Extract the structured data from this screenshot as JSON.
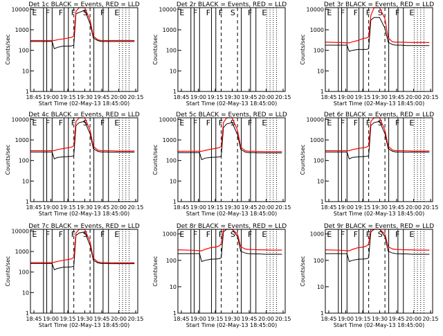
{
  "page": {
    "background": "#ffffff"
  },
  "legend_colors": {
    "events": "#000000",
    "lld": "#ff0000"
  },
  "chart_data": [
    {
      "type": "line",
      "title": "Det 1c BLACK = Events, RED = LLD",
      "xlabel": "Start Time (02-May-13 18:45:00)",
      "ylabel": "Counts/sec",
      "xlim": [
        0,
        99
      ],
      "ylim": [
        1,
        12000
      ],
      "yscale": "log",
      "x_ticks": [
        "18:45",
        "19:00",
        "19:15",
        "19:30",
        "19:45",
        "20:00",
        "20:15"
      ],
      "y_ticks": [
        "1",
        "10",
        "100",
        "1000",
        "10000"
      ],
      "flags": [
        "E",
        "F",
        "F",
        "F",
        "S",
        "F",
        "E"
      ],
      "series": [
        {
          "color": "#000000",
          "x": [
            0,
            15,
            20,
            22,
            25,
            30,
            35,
            38,
            40,
            42,
            45,
            50,
            55,
            58,
            62,
            65,
            70,
            75,
            80,
            85,
            90,
            96
          ],
          "y": [
            270,
            270,
            270,
            120,
            140,
            160,
            160,
            165,
            180,
            6000,
            7000,
            9000,
            2000,
            400,
            300,
            270,
            270,
            270,
            270,
            270,
            270,
            270
          ]
        },
        {
          "color": "#ff0000",
          "x": [
            0,
            15,
            20,
            22,
            25,
            30,
            35,
            38,
            40,
            42,
            45,
            50,
            55,
            58,
            62,
            65,
            70,
            75,
            80,
            85,
            90,
            96
          ],
          "y": [
            300,
            300,
            300,
            300,
            330,
            360,
            400,
            430,
            500,
            8000,
            12000,
            12000,
            3000,
            500,
            330,
            300,
            300,
            300,
            300,
            300,
            300,
            300
          ]
        }
      ]
    },
    {
      "type": "line",
      "title": "Det 2r BLACK = Events, RED = LLD",
      "xlabel": "Start Time (02-May-13 18:45:00)",
      "ylabel": "Counts/sec",
      "xlim": [
        0,
        99
      ],
      "ylim": [
        1,
        12000
      ],
      "yscale": "log",
      "x_ticks": [
        "18:45",
        "19:00",
        "19:15",
        "19:30",
        "19:45",
        "20:00",
        "20:15"
      ],
      "y_ticks": [
        "1",
        "10",
        "100",
        "1000",
        "10000"
      ],
      "flags": [
        "E",
        "F",
        "F",
        "F",
        "S",
        "F",
        "E"
      ],
      "series": []
    },
    {
      "type": "line",
      "title": "Det 3r BLACK = Events, RED = LLD",
      "xlabel": "Start Time (02-May-13 18:45:00)",
      "ylabel": "Counts/sec",
      "xlim": [
        0,
        99
      ],
      "ylim": [
        1,
        12000
      ],
      "yscale": "log",
      "x_ticks": [
        "18:45",
        "19:00",
        "19:15",
        "19:30",
        "19:45",
        "20:00",
        "20:15"
      ],
      "y_ticks": [
        "1",
        "10",
        "100",
        "1000",
        "10000"
      ],
      "flags": [
        "E",
        "F",
        "F",
        "F",
        "S",
        "F",
        "E"
      ],
      "series": [
        {
          "color": "#000000",
          "x": [
            0,
            15,
            20,
            22,
            25,
            30,
            35,
            38,
            40,
            42,
            45,
            50,
            55,
            58,
            62,
            65,
            70,
            75,
            80,
            85,
            90,
            96
          ],
          "y": [
            180,
            180,
            180,
            90,
            100,
            110,
            110,
            110,
            120,
            3000,
            4000,
            4000,
            1200,
            250,
            190,
            180,
            180,
            170,
            170,
            170,
            170,
            170
          ]
        },
        {
          "color": "#ff0000",
          "x": [
            0,
            15,
            20,
            22,
            25,
            30,
            35,
            38,
            40,
            42,
            45,
            50,
            55,
            58,
            62,
            65,
            70,
            75,
            80,
            85,
            90,
            96
          ],
          "y": [
            250,
            240,
            230,
            230,
            260,
            300,
            380,
            400,
            450,
            5000,
            12000,
            12000,
            3500,
            400,
            260,
            250,
            250,
            245,
            240,
            240,
            240,
            240
          ]
        }
      ]
    },
    {
      "type": "line",
      "title": "Det 4c BLACK = Events, RED = LLD",
      "xlabel": "Start Time (02-May-13 18:45:00)",
      "ylabel": "Counts/sec",
      "xlim": [
        0,
        99
      ],
      "ylim": [
        1,
        12000
      ],
      "yscale": "log",
      "x_ticks": [
        "18:45",
        "19:00",
        "19:15",
        "19:30",
        "19:45",
        "20:00",
        "20:15"
      ],
      "y_ticks": [
        "1",
        "10",
        "100",
        "1000",
        "10000"
      ],
      "flags": [
        "E",
        "F",
        "F",
        "F",
        "S",
        "F",
        "E"
      ],
      "series": [
        {
          "color": "#000000",
          "x": [
            0,
            15,
            20,
            22,
            25,
            30,
            35,
            38,
            40,
            42,
            45,
            50,
            55,
            58,
            62,
            65,
            70,
            75,
            80,
            85,
            90,
            96
          ],
          "y": [
            260,
            260,
            260,
            120,
            140,
            150,
            155,
            160,
            170,
            5000,
            7000,
            8000,
            2000,
            380,
            280,
            260,
            260,
            255,
            255,
            255,
            255,
            255
          ]
        },
        {
          "color": "#ff0000",
          "x": [
            0,
            15,
            20,
            22,
            25,
            30,
            35,
            38,
            40,
            42,
            45,
            50,
            55,
            58,
            62,
            65,
            70,
            75,
            80,
            85,
            90,
            96
          ],
          "y": [
            300,
            300,
            300,
            300,
            340,
            380,
            420,
            450,
            520,
            8000,
            12000,
            12000,
            3000,
            500,
            320,
            300,
            300,
            295,
            290,
            290,
            290,
            290
          ]
        }
      ]
    },
    {
      "type": "line",
      "title": "Det 5c BLACK = Events, RED = LLD",
      "xlabel": "Start Time (02-May-13 18:45:00)",
      "ylabel": "Counts/sec",
      "xlim": [
        0,
        99
      ],
      "ylim": [
        1,
        12000
      ],
      "yscale": "log",
      "x_ticks": [
        "18:45",
        "19:00",
        "19:15",
        "19:30",
        "19:45",
        "20:00",
        "20:15"
      ],
      "y_ticks": [
        "1",
        "10",
        "100",
        "1000",
        "10000"
      ],
      "flags": [
        "E",
        "F",
        "F",
        "F",
        "S",
        "F",
        "E"
      ],
      "series": [
        {
          "color": "#000000",
          "x": [
            0,
            15,
            20,
            22,
            25,
            30,
            35,
            38,
            40,
            42,
            45,
            50,
            55,
            58,
            62,
            65,
            70,
            75,
            80,
            85,
            90,
            96
          ],
          "y": [
            240,
            240,
            240,
            110,
            130,
            140,
            145,
            150,
            160,
            4000,
            6000,
            7000,
            1800,
            350,
            260,
            240,
            240,
            235,
            235,
            235,
            235,
            235
          ]
        },
        {
          "color": "#ff0000",
          "x": [
            0,
            15,
            20,
            22,
            25,
            30,
            35,
            38,
            40,
            42,
            45,
            50,
            55,
            58,
            62,
            65,
            70,
            75,
            80,
            85,
            90,
            96
          ],
          "y": [
            280,
            280,
            280,
            280,
            310,
            350,
            390,
            420,
            480,
            7000,
            12000,
            12000,
            3000,
            450,
            300,
            280,
            280,
            275,
            270,
            270,
            270,
            270
          ]
        }
      ]
    },
    {
      "type": "line",
      "title": "Det 6r BLACK = Events, RED = LLD",
      "xlabel": "Start Time (02-May-13 18:45:00)",
      "ylabel": "Counts/sec",
      "xlim": [
        0,
        99
      ],
      "ylim": [
        1,
        12000
      ],
      "yscale": "log",
      "x_ticks": [
        "18:45",
        "19:00",
        "19:15",
        "19:30",
        "19:45",
        "20:00",
        "20:15"
      ],
      "y_ticks": [
        "1",
        "10",
        "100",
        "1000",
        "10000"
      ],
      "flags": [
        "E",
        "F",
        "F",
        "F",
        "S",
        "F",
        "E"
      ],
      "series": [
        {
          "color": "#000000",
          "x": [
            0,
            15,
            20,
            22,
            25,
            30,
            35,
            38,
            40,
            42,
            45,
            50,
            55,
            58,
            62,
            65,
            70,
            75,
            80,
            85,
            90,
            96
          ],
          "y": [
            260,
            260,
            260,
            120,
            140,
            150,
            155,
            160,
            170,
            5000,
            7000,
            8000,
            2000,
            380,
            280,
            260,
            260,
            255,
            255,
            255,
            255,
            255
          ]
        },
        {
          "color": "#ff0000",
          "x": [
            0,
            15,
            20,
            22,
            25,
            30,
            35,
            38,
            40,
            42,
            45,
            50,
            55,
            58,
            62,
            65,
            70,
            75,
            80,
            85,
            90,
            96
          ],
          "y": [
            300,
            300,
            300,
            300,
            340,
            380,
            420,
            450,
            520,
            8000,
            12000,
            12000,
            3000,
            500,
            320,
            300,
            300,
            295,
            290,
            290,
            290,
            290
          ]
        }
      ]
    },
    {
      "type": "line",
      "title": "Det 7c BLACK = Events, RED = LLD",
      "xlabel": "Start Time (02-May-13 18:45:00)",
      "ylabel": "Counts/sec",
      "xlim": [
        0,
        99
      ],
      "ylim": [
        1,
        12000
      ],
      "yscale": "log",
      "x_ticks": [
        "18:45",
        "19:00",
        "19:15",
        "19:30",
        "19:45",
        "20:00",
        "20:15"
      ],
      "y_ticks": [
        "1",
        "10",
        "100",
        "1000",
        "10000"
      ],
      "flags": [
        "E",
        "F",
        "F",
        "F",
        "S",
        "F",
        "E"
      ],
      "series": [
        {
          "color": "#000000",
          "x": [
            0,
            15,
            20,
            22,
            25,
            30,
            35,
            38,
            40,
            42,
            45,
            50,
            55,
            58,
            62,
            65,
            70,
            75,
            80,
            85,
            90,
            96
          ],
          "y": [
            260,
            260,
            260,
            130,
            150,
            170,
            175,
            180,
            190,
            6000,
            8000,
            9000,
            2000,
            380,
            280,
            260,
            260,
            255,
            255,
            255,
            255,
            255
          ]
        },
        {
          "color": "#ff0000",
          "x": [
            0,
            15,
            20,
            22,
            25,
            30,
            35,
            38,
            40,
            42,
            45,
            50,
            55,
            58,
            62,
            65,
            70,
            75,
            80,
            85,
            90,
            96
          ],
          "y": [
            290,
            290,
            290,
            300,
            330,
            370,
            410,
            440,
            510,
            8000,
            12000,
            12000,
            3000,
            480,
            310,
            290,
            290,
            285,
            280,
            280,
            280,
            280
          ]
        }
      ]
    },
    {
      "type": "line",
      "title": "Det 8r BLACK = Events, RED = LLD",
      "xlabel": "Start Time (02-May-13 18:45:00)",
      "ylabel": "Counts/sec",
      "xlim": [
        0,
        99
      ],
      "ylim": [
        1,
        1500
      ],
      "yscale": "log",
      "x_ticks": [
        "18:45",
        "19:00",
        "19:15",
        "19:30",
        "19:45",
        "20:00",
        "20:15"
      ],
      "y_ticks": [
        "1",
        "10",
        "100",
        "1000"
      ],
      "flags": [
        "E",
        "F",
        "F",
        "F",
        "S",
        "F",
        "E"
      ],
      "series": [
        {
          "color": "#000000",
          "x": [
            0,
            15,
            20,
            22,
            25,
            30,
            35,
            38,
            40,
            42,
            45,
            50,
            55,
            58,
            62,
            65,
            70,
            75,
            80,
            85,
            90,
            96
          ],
          "y": [
            180,
            180,
            180,
            90,
            100,
            110,
            112,
            115,
            125,
            1200,
            1500,
            1500,
            800,
            220,
            190,
            180,
            175,
            175,
            170,
            170,
            170,
            170
          ]
        },
        {
          "color": "#ff0000",
          "x": [
            0,
            15,
            20,
            22,
            25,
            30,
            35,
            38,
            40,
            42,
            45,
            50,
            55,
            58,
            62,
            65,
            70,
            75,
            80,
            85,
            90,
            96
          ],
          "y": [
            250,
            240,
            230,
            230,
            260,
            300,
            320,
            350,
            420,
            1500,
            1500,
            1500,
            1000,
            330,
            270,
            260,
            255,
            250,
            250,
            245,
            245,
            245
          ]
        }
      ]
    },
    {
      "type": "line",
      "title": "Det 9r BLACK = Events, RED = LLD",
      "xlabel": "Start Time (02-May-13 18:45:00)",
      "ylabel": "Counts/sec",
      "xlim": [
        0,
        99
      ],
      "ylim": [
        1,
        1500
      ],
      "yscale": "log",
      "x_ticks": [
        "18:45",
        "19:00",
        "19:15",
        "19:30",
        "19:45",
        "20:00",
        "20:15"
      ],
      "y_ticks": [
        "1",
        "10",
        "100",
        "1000"
      ],
      "flags": [
        "E",
        "F",
        "F",
        "F",
        "S",
        "F",
        "E"
      ],
      "series": [
        {
          "color": "#000000",
          "x": [
            0,
            15,
            20,
            22,
            25,
            30,
            35,
            38,
            40,
            42,
            45,
            50,
            55,
            58,
            62,
            65,
            70,
            75,
            80,
            85,
            90,
            96
          ],
          "y": [
            180,
            180,
            180,
            90,
            100,
            110,
            112,
            115,
            125,
            1200,
            1500,
            1500,
            800,
            220,
            190,
            180,
            175,
            175,
            170,
            170,
            170,
            170
          ]
        },
        {
          "color": "#ff0000",
          "x": [
            0,
            15,
            20,
            22,
            25,
            30,
            35,
            38,
            40,
            42,
            45,
            50,
            55,
            58,
            62,
            65,
            70,
            75,
            80,
            85,
            90,
            96
          ],
          "y": [
            250,
            240,
            230,
            230,
            260,
            300,
            320,
            350,
            420,
            1500,
            1500,
            1500,
            1000,
            330,
            270,
            260,
            255,
            250,
            250,
            245,
            245,
            245
          ]
        }
      ]
    }
  ]
}
